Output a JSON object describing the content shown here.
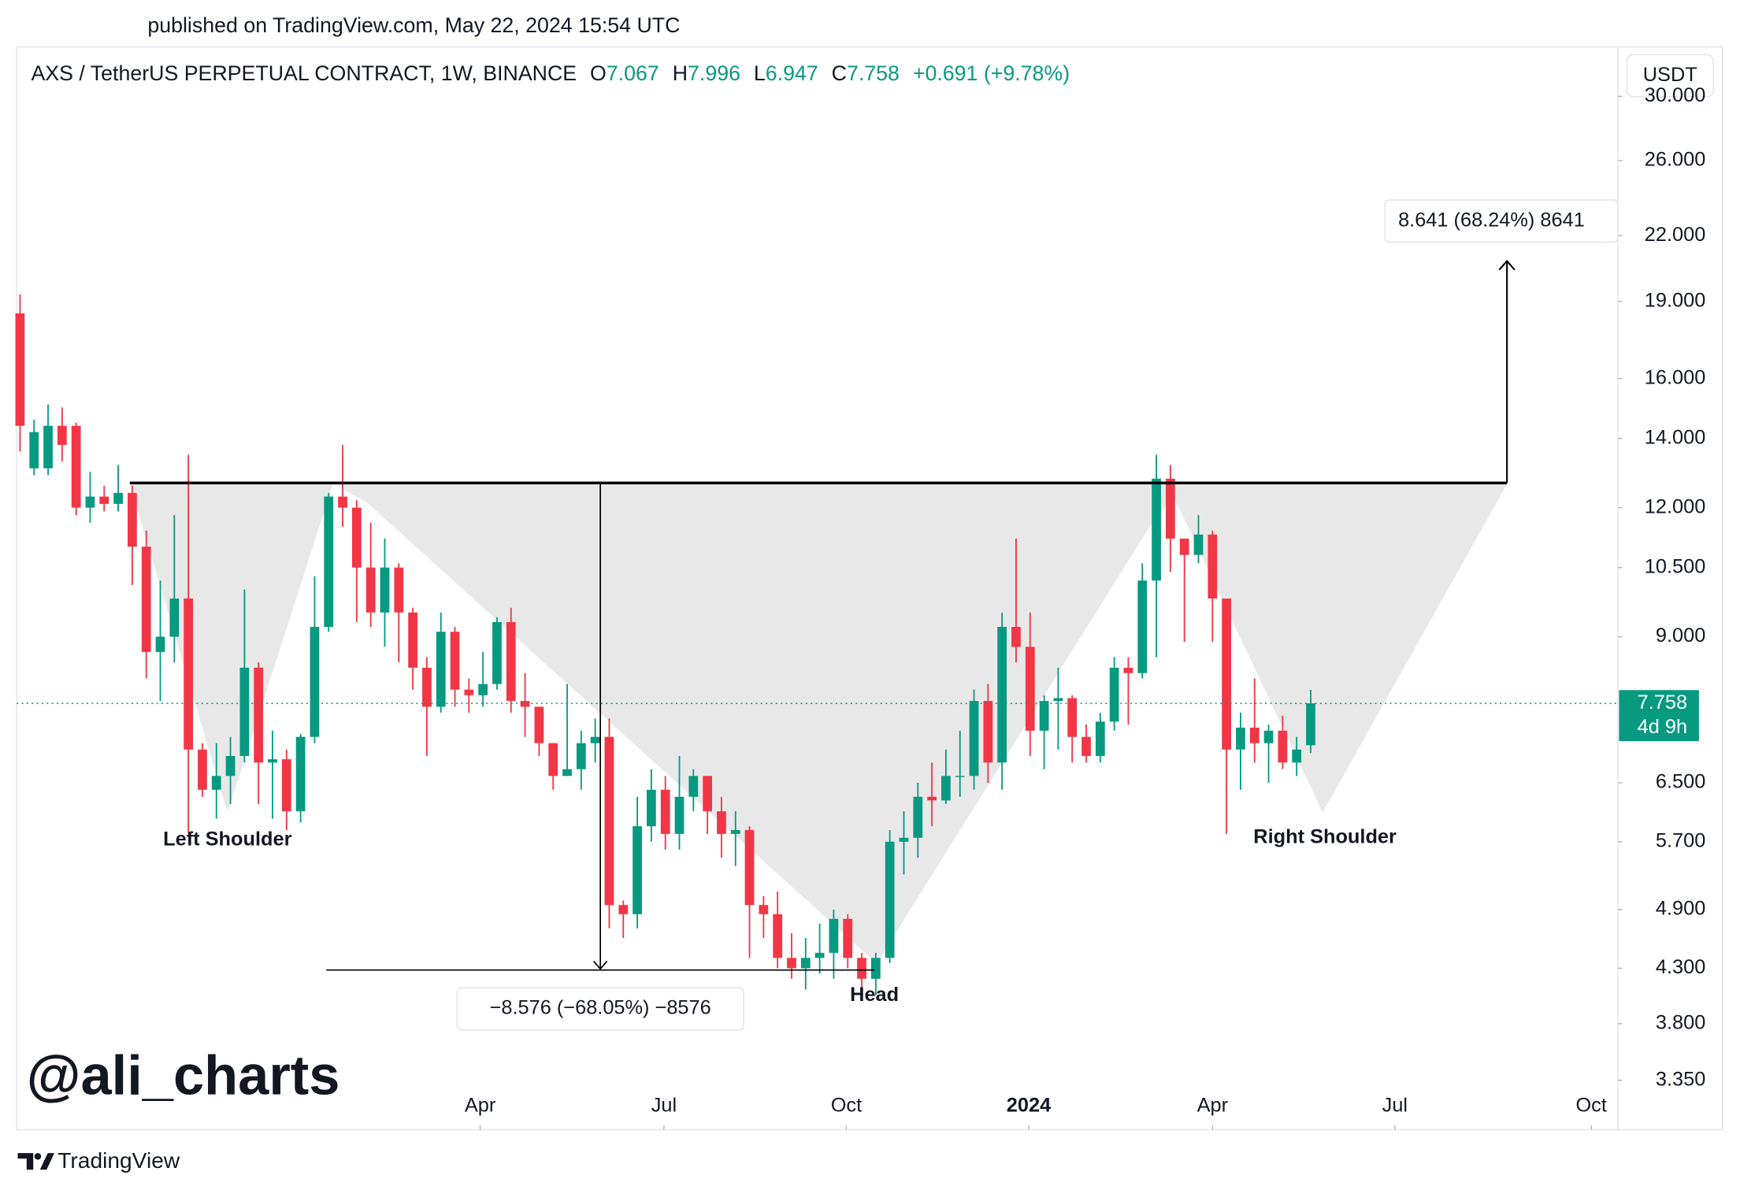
{
  "header": {
    "published": "published on TradingView.com, May 22, 2024 15:54 UTC",
    "brand": "TradingView",
    "watermark": "@ali_charts"
  },
  "chart_data": {
    "type": "candlestick",
    "title": "AXS / TetherUS PERPETUAL CONTRACT, 1W, BINANCE",
    "legend": [
      {
        "key": "O",
        "value": "7.067"
      },
      {
        "key": "H",
        "value": "7.996"
      },
      {
        "key": "L",
        "value": "6.947"
      },
      {
        "key": "C",
        "value": "7.758"
      }
    ],
    "change": "+0.691 (+9.78%)",
    "currency": "USDT",
    "last_price": 7.758,
    "last_price_label": "7.758",
    "countdown": "4d 9h",
    "up_color": "#089981",
    "down_color": "#f23645",
    "log_scale": true,
    "open": [
      18.5,
      13.1,
      13.1,
      14.4,
      14.4,
      12.0,
      12.3,
      12.1,
      12.4,
      11.0,
      8.7,
      9.0,
      9.8,
      7.0,
      6.4,
      6.6,
      6.9,
      8.4,
      6.8,
      6.85,
      6.1,
      7.2,
      9.2,
      12.3,
      12.0,
      10.5,
      9.5,
      10.5,
      9.5,
      8.4,
      7.7,
      9.1,
      8.0,
      7.9,
      8.1,
      9.3,
      7.8,
      7.7,
      7.1,
      6.6,
      6.7,
      7.1,
      7.2,
      4.95,
      4.85,
      5.9,
      6.4,
      5.8,
      6.3,
      6.6,
      6.1,
      5.8,
      5.85,
      4.95,
      4.85,
      4.4,
      4.3,
      4.4,
      4.45,
      4.8,
      4.4,
      4.2,
      4.4,
      5.7,
      5.75,
      6.3,
      6.25,
      6.6,
      6.6,
      7.8,
      6.8,
      9.2,
      8.8,
      7.3,
      7.8,
      7.85,
      7.2,
      6.9,
      7.45,
      8.4,
      8.3,
      10.2,
      12.8,
      11.2,
      10.8,
      11.3,
      9.8,
      7.0,
      7.35,
      7.1,
      7.3,
      6.8,
      7.067
    ],
    "high": [
      19.3,
      14.6,
      15.1,
      15.0,
      14.5,
      13.0,
      12.6,
      13.2,
      12.6,
      11.4,
      10.2,
      11.8,
      13.5,
      7.1,
      7.1,
      7.2,
      10.0,
      8.5,
      7.3,
      7.0,
      7.25,
      10.3,
      12.4,
      13.8,
      12.2,
      11.6,
      11.2,
      10.6,
      9.6,
      8.6,
      9.5,
      9.2,
      8.2,
      8.7,
      9.4,
      9.6,
      8.3,
      7.7,
      7.1,
      8.1,
      7.3,
      7.5,
      7.5,
      5.0,
      6.3,
      6.7,
      6.6,
      6.9,
      6.7,
      6.6,
      6.3,
      6.1,
      5.9,
      5.05,
      5.1,
      4.65,
      4.6,
      4.75,
      4.9,
      4.85,
      4.45,
      4.45,
      5.85,
      6.1,
      6.5,
      6.8,
      7.0,
      7.3,
      8.0,
      8.1,
      9.5,
      11.2,
      9.5,
      7.9,
      8.4,
      7.9,
      7.4,
      7.6,
      8.6,
      8.6,
      10.6,
      13.5,
      13.2,
      11.2,
      11.8,
      11.4,
      9.8,
      7.6,
      8.2,
      7.4,
      7.55,
      7.2,
      7.996
    ],
    "low": [
      13.6,
      12.9,
      12.9,
      13.3,
      11.8,
      11.6,
      11.9,
      11.9,
      10.1,
      8.2,
      7.8,
      8.5,
      5.8,
      6.3,
      6.0,
      6.2,
      6.8,
      6.2,
      6.0,
      5.85,
      5.95,
      7.1,
      9.1,
      11.5,
      9.3,
      9.2,
      8.8,
      8.5,
      8.0,
      6.9,
      7.6,
      7.7,
      7.6,
      7.7,
      8.0,
      7.6,
      7.2,
      6.9,
      6.4,
      6.6,
      6.4,
      6.8,
      4.7,
      4.6,
      4.7,
      5.7,
      5.6,
      5.6,
      6.1,
      5.8,
      5.5,
      5.4,
      4.4,
      4.6,
      4.3,
      4.2,
      4.1,
      4.25,
      4.2,
      4.3,
      4.1,
      4.05,
      4.35,
      5.3,
      5.5,
      5.9,
      6.2,
      6.3,
      6.4,
      6.5,
      6.4,
      8.5,
      6.9,
      6.7,
      7.0,
      6.8,
      6.8,
      6.8,
      7.3,
      7.4,
      8.2,
      8.6,
      10.4,
      8.9,
      10.6,
      8.9,
      5.8,
      6.4,
      6.8,
      6.5,
      6.7,
      6.6,
      6.947
    ],
    "close": [
      14.4,
      14.2,
      14.4,
      13.8,
      12.0,
      12.3,
      12.1,
      12.4,
      11.0,
      8.7,
      9.0,
      9.8,
      7.0,
      6.4,
      6.6,
      6.9,
      8.4,
      6.8,
      6.85,
      6.1,
      7.2,
      9.2,
      12.3,
      12.0,
      10.5,
      9.5,
      10.5,
      9.5,
      8.4,
      7.7,
      9.1,
      8.0,
      7.9,
      8.1,
      9.3,
      7.8,
      7.7,
      7.1,
      6.6,
      6.7,
      7.1,
      7.2,
      4.95,
      4.85,
      5.9,
      6.4,
      5.8,
      6.3,
      6.6,
      6.1,
      5.8,
      5.85,
      4.95,
      4.85,
      4.4,
      4.3,
      4.4,
      4.45,
      4.8,
      4.4,
      4.2,
      4.4,
      5.7,
      5.75,
      6.3,
      6.25,
      6.6,
      6.6,
      7.8,
      6.8,
      9.2,
      8.8,
      7.3,
      7.8,
      7.85,
      7.2,
      6.9,
      7.45,
      8.4,
      8.3,
      10.2,
      12.8,
      11.2,
      10.8,
      11.3,
      9.8,
      7.0,
      7.35,
      7.1,
      7.3,
      6.8,
      7.0,
      7.758
    ],
    "xlim": [
      -0.24,
      113.9
    ],
    "xticks": [
      {
        "value": 32.8,
        "label": "Apr"
      },
      {
        "value": 45.9,
        "label": "Jul"
      },
      {
        "value": 58.9,
        "label": "Oct"
      },
      {
        "value": 71.9,
        "label": "2024"
      },
      {
        "value": 85.0,
        "label": "Apr"
      },
      {
        "value": 98.0,
        "label": "Jul"
      },
      {
        "value": 112.0,
        "label": "Oct"
      }
    ],
    "ylim": [
      3.0,
      33.5
    ],
    "yticks": [
      {
        "value": 30,
        "label": "30.000"
      },
      {
        "value": 26,
        "label": "26.000"
      },
      {
        "value": 22,
        "label": "22.000"
      },
      {
        "value": 19,
        "label": "19.000"
      },
      {
        "value": 16,
        "label": "16.000"
      },
      {
        "value": 14,
        "label": "14.000"
      },
      {
        "value": 12,
        "label": "12.000"
      },
      {
        "value": 10.5,
        "label": "10.500"
      },
      {
        "value": 9,
        "label": "9.000"
      },
      {
        "value": 6.5,
        "label": "6.500"
      },
      {
        "value": 5.7,
        "label": "5.700"
      },
      {
        "value": 4.9,
        "label": "4.900"
      },
      {
        "value": 4.3,
        "label": "4.300"
      },
      {
        "value": 3.8,
        "label": "3.800"
      },
      {
        "value": 3.35,
        "label": "3.350"
      }
    ],
    "annotations": {
      "left_shoulder": "Left Shoulder",
      "head": "Head",
      "right_shoulder": "Right Shoulder",
      "target": "8.641 (68.24%) 8641",
      "depth": "−8.576 (−68.05%) −8576"
    }
  }
}
